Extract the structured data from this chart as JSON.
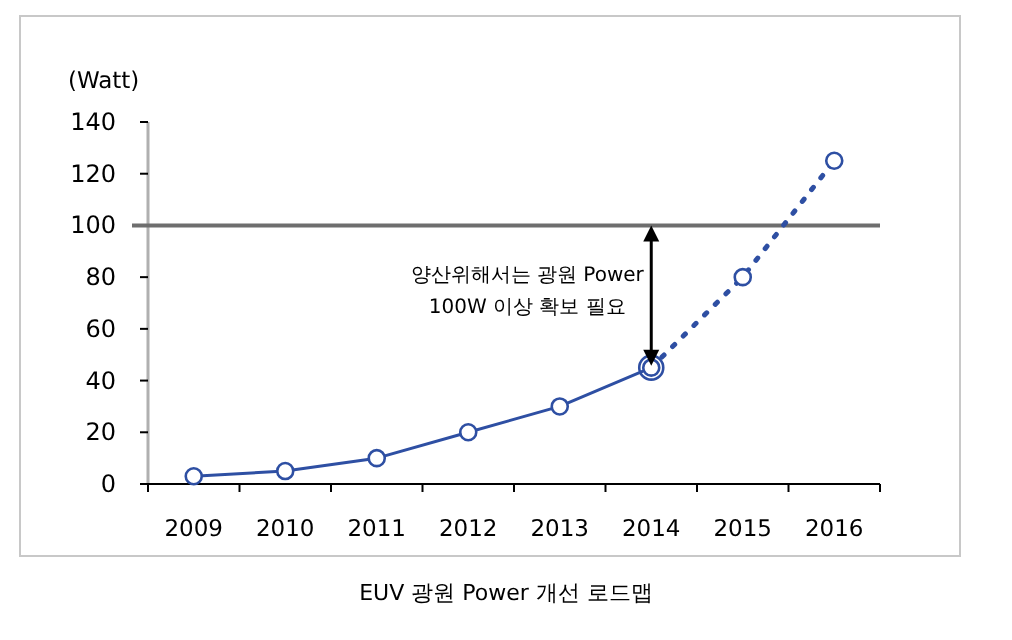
{
  "chart_data": {
    "type": "line",
    "title": "EUV 광원 Power 개선 로드맵",
    "ylabel": "(Watt)",
    "categories": [
      "2009",
      "2010",
      "2011",
      "2012",
      "2013",
      "2014",
      "2015",
      "2016"
    ],
    "series": [
      {
        "color": "#2e4fa3",
        "line_style": "solid",
        "marker": "circle",
        "values": [
          3,
          5,
          10,
          20,
          30,
          45,
          null,
          null
        ]
      },
      {
        "color": "#2e4fa3",
        "line_style": "dotted",
        "marker": "circle",
        "values": [
          null,
          null,
          null,
          null,
          null,
          45,
          80,
          125
        ]
      }
    ],
    "ylim": [
      0,
      140
    ],
    "yticks": [
      0,
      20,
      40,
      60,
      80,
      100,
      120,
      140
    ],
    "grid": false,
    "ref_lines": [
      {
        "axis": "y",
        "value": 100,
        "color": "#6e6e6e",
        "line_style": "solid"
      }
    ],
    "annotations": [
      {
        "text": "양산위해서는 광원 Power\n100W 이상 확보 필요",
        "x": "2014",
        "y": 45
      }
    ]
  }
}
